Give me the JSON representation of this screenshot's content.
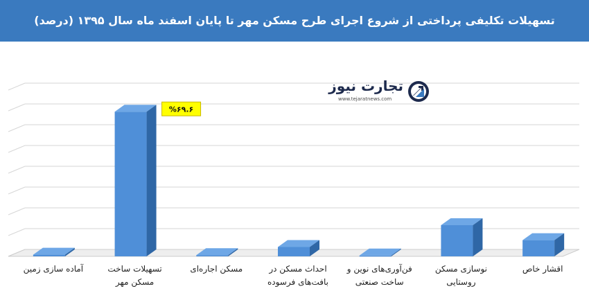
{
  "header": {
    "title": "تسهیلات تکلیفی پرداختی از شروع اجرای طرح مسکن مهر تا پایان اسفند ماه سال ۱۳۹۵ (درصد)"
  },
  "logo": {
    "name": "تجارت نیوز",
    "url": "www.tejaratnews.com",
    "icon": "tejarat-news-logo-icon"
  },
  "chart_data": {
    "type": "bar",
    "title": "تسهیلات تکلیفی پرداختی از شروع اجرای طرح مسکن مهر تا پایان اسفند ماه سال ۱۳۹۵ (درصد)",
    "categories": [
      "آماده سازی زمین",
      "تسهیلات ساخت مسکن مهر",
      "مسکن اجاره‌ای",
      "احداث مسکن در بافت‌های فرسوده",
      "فن‌آوری‌های نوین و ساخت صنعتی",
      "نوسازی مسکن روستایی",
      "اقشار خاص"
    ],
    "category_lines": [
      [
        "آماده سازی زمین"
      ],
      [
        "تسهیلات ساخت",
        "مسکن مهر"
      ],
      [
        "مسکن اجاره‌ای"
      ],
      [
        "احداث مسکن در",
        "بافت‌های فرسوده"
      ],
      [
        "فن‌آوری‌های نوین و",
        "ساخت صنعتی"
      ],
      [
        "نوسازی مسکن",
        "روستایی"
      ],
      [
        "اقشار خاص"
      ]
    ],
    "values": [
      0.8,
      69.6,
      0.6,
      4.5,
      0.4,
      15.0,
      7.8
    ],
    "data_labels": [
      {
        "index": 1,
        "text": "%۶۹.۶"
      }
    ],
    "ylim": [
      0,
      80
    ],
    "grid": true,
    "bar_color": "#4f8fd8",
    "highlight_label_color": "#ffff00"
  }
}
